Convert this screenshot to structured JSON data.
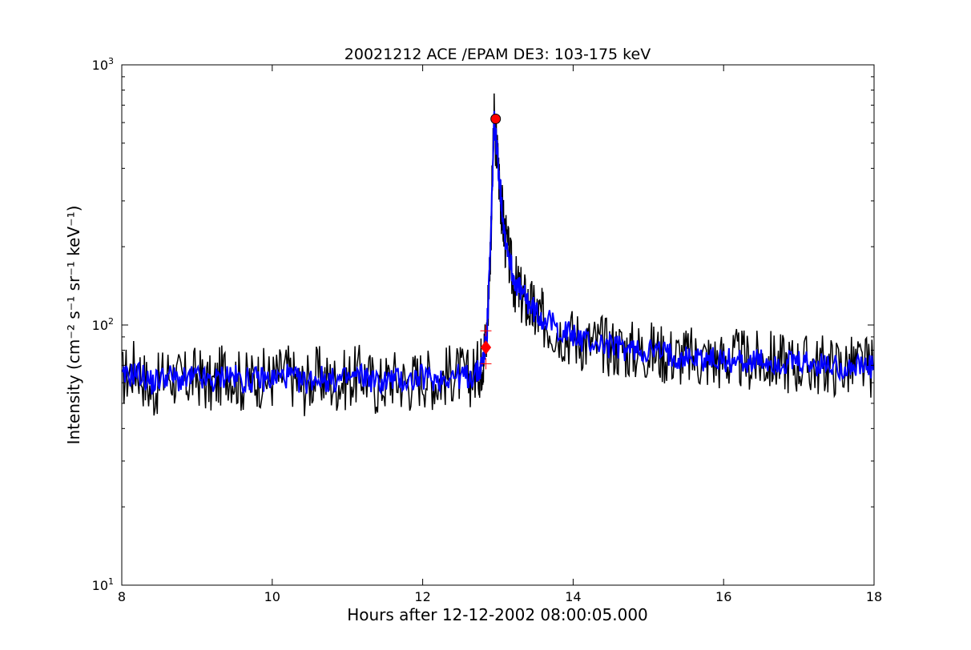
{
  "chart_data": {
    "type": "line",
    "title": "20021212 ACE /EPAM DE3: 103-175 keV",
    "xlabel": "Hours after 12-12-2002 08:00:05.000",
    "ylabel": "Intensity (cm⁻² s⁻¹ sr⁻¹ keV⁻¹)",
    "xlim": [
      8,
      18
    ],
    "ylim": [
      10,
      1000
    ],
    "yscale": "log",
    "grid": false,
    "x_ticks": [
      8,
      10,
      12,
      14,
      16,
      18
    ],
    "x_tick_labels": [
      "8",
      "10",
      "12",
      "14",
      "16",
      "18"
    ],
    "y_tick_labels": [
      {
        "base": "10",
        "exp": "1",
        "value": 10
      },
      {
        "base": "10",
        "exp": "2",
        "value": 100
      },
      {
        "base": "10",
        "exp": "3",
        "value": 1000
      }
    ],
    "series": [
      {
        "role": "raw",
        "color": "#000000",
        "x": [
          8.0,
          8.2,
          8.4,
          8.6,
          8.8,
          9.0,
          9.2,
          9.4,
          9.6,
          9.8,
          10.0,
          10.2,
          10.4,
          10.6,
          10.8,
          11.0,
          11.2,
          11.4,
          11.6,
          11.8,
          12.0,
          12.2,
          12.4,
          12.6,
          12.75,
          12.8,
          12.85,
          12.9,
          12.95,
          13.0,
          13.05,
          13.1,
          13.2,
          13.3,
          13.4,
          13.5,
          13.6,
          13.8,
          14.0,
          14.2,
          14.4,
          14.6,
          14.8,
          15.0,
          15.2,
          15.4,
          15.6,
          15.8,
          16.0,
          16.2,
          16.4,
          16.6,
          16.8,
          17.0,
          17.2,
          17.4,
          17.6,
          17.8,
          18.0
        ],
        "values": [
          62,
          70,
          55,
          66,
          60,
          64,
          58,
          68,
          60,
          63,
          62,
          66,
          58,
          64,
          60,
          62,
          65,
          58,
          63,
          60,
          64,
          61,
          66,
          62,
          68,
          75,
          90,
          200,
          600,
          420,
          280,
          210,
          150,
          130,
          120,
          110,
          105,
          96,
          90,
          85,
          84,
          82,
          80,
          80,
          78,
          76,
          75,
          74,
          73,
          74,
          72,
          73,
          72,
          71,
          70,
          70,
          69,
          70,
          68
        ]
      },
      {
        "role": "smoothed",
        "color": "#0000ff",
        "x": [
          8.0,
          8.2,
          8.4,
          8.6,
          8.8,
          9.0,
          9.2,
          9.4,
          9.6,
          9.8,
          10.0,
          10.2,
          10.4,
          10.6,
          10.8,
          11.0,
          11.2,
          11.4,
          11.6,
          11.8,
          12.0,
          12.2,
          12.4,
          12.6,
          12.75,
          12.8,
          12.85,
          12.9,
          12.95,
          13.0,
          13.05,
          13.1,
          13.2,
          13.3,
          13.4,
          13.5,
          13.6,
          13.8,
          14.0,
          14.2,
          14.4,
          14.6,
          14.8,
          15.0,
          15.2,
          15.4,
          15.6,
          15.8,
          16.0,
          16.2,
          16.4,
          16.6,
          16.8,
          17.0,
          17.2,
          17.4,
          17.6,
          17.8,
          18.0
        ],
        "values": [
          62,
          66,
          60,
          64,
          61,
          63,
          60,
          65,
          61,
          62,
          62,
          64,
          60,
          63,
          61,
          62,
          64,
          60,
          62,
          61,
          63,
          62,
          64,
          63,
          66,
          74,
          88,
          190,
          620,
          430,
          290,
          215,
          155,
          135,
          122,
          112,
          106,
          97,
          91,
          86,
          84,
          82,
          80,
          80,
          78,
          76,
          75,
          74,
          73,
          73,
          72,
          72,
          71,
          71,
          70,
          70,
          69,
          69,
          68
        ]
      }
    ],
    "markers": [
      {
        "type": "circle",
        "color": "#ff0000",
        "x": 12.97,
        "y": 620
      },
      {
        "type": "diamond",
        "color": "#ff0000",
        "x": 12.84,
        "y": 82
      },
      {
        "type": "plus",
        "color": "#ff0000",
        "x": 12.84,
        "y": 95
      },
      {
        "type": "plus",
        "color": "#ff0000",
        "x": 12.84,
        "y": 71
      }
    ]
  }
}
